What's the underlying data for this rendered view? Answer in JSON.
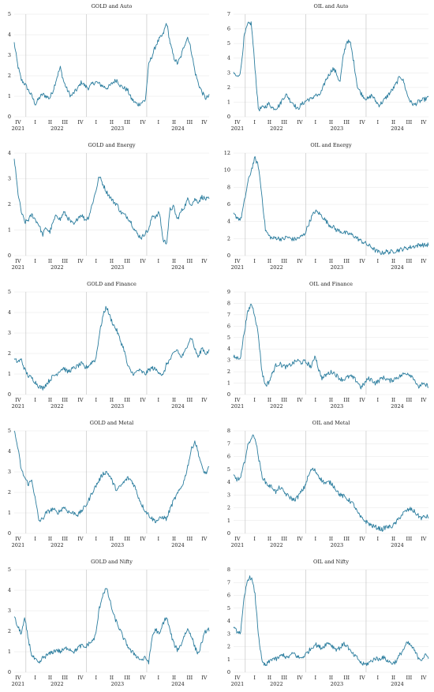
{
  "quarter_labels": [
    "IV",
    "I",
    "II",
    "III",
    "IV",
    "I",
    "II",
    "III",
    "IV",
    "I",
    "II",
    "III",
    "IV"
  ],
  "year_labels": [
    "2021",
    "2022",
    "2023",
    "2024"
  ],
  "colors": {
    "line": "#2b7d9e",
    "vgrid": "#bdbdbd",
    "hgrid": "#e6e6e6"
  },
  "chart_data": [
    {
      "type": "line",
      "title": "GOLD and Auto",
      "yticks": [
        "0",
        "1",
        "2",
        "3",
        "4",
        "5"
      ],
      "ylim": [
        0,
        5
      ],
      "knots": [
        3.6,
        2.5,
        1.8,
        1.6,
        1.3,
        1.0,
        0.6,
        0.9,
        1.1,
        1.0,
        0.9,
        1.3,
        1.9,
        2.4,
        1.7,
        1.3,
        1.0,
        1.2,
        1.4,
        1.7,
        1.5,
        1.4,
        1.6,
        1.7,
        1.6,
        1.5,
        1.4,
        1.5,
        1.7,
        1.8,
        1.5,
        1.4,
        1.3,
        0.9,
        0.7,
        0.6,
        0.7,
        0.8,
        2.6,
        3.0,
        3.5,
        3.8,
        4.0,
        4.6,
        3.6,
        2.9,
        2.6,
        2.9,
        3.5,
        3.9,
        3.2,
        2.2,
        1.6,
        1.2,
        0.9,
        1.0
      ]
    },
    {
      "type": "line",
      "title": "OIL and Auto",
      "yticks": [
        "0",
        "1",
        "2",
        "3",
        "4",
        "5",
        "6",
        "7"
      ],
      "ylim": [
        0,
        7
      ],
      "knots": [
        3.0,
        2.7,
        3.1,
        5.5,
        6.3,
        6.4,
        3.5,
        0.5,
        0.6,
        0.7,
        0.9,
        0.6,
        0.6,
        0.8,
        1.3,
        1.5,
        1.1,
        0.9,
        0.5,
        0.8,
        1.0,
        1.2,
        1.2,
        1.5,
        1.4,
        1.8,
        2.5,
        2.9,
        3.3,
        3.0,
        2.3,
        4.2,
        5.2,
        5.0,
        3.6,
        2.0,
        1.6,
        1.3,
        1.2,
        1.5,
        1.1,
        0.8,
        1.0,
        1.3,
        1.6,
        1.9,
        2.3,
        2.8,
        2.4,
        1.5,
        1.0,
        0.8,
        1.0,
        1.1,
        1.2,
        1.3
      ]
    },
    {
      "type": "line",
      "title": "GOLD and Energy",
      "yticks": [
        "0",
        "1",
        "2",
        "3",
        "4"
      ],
      "ylim": [
        0,
        4
      ],
      "knots": [
        3.8,
        2.5,
        1.7,
        1.3,
        1.4,
        1.6,
        1.4,
        1.2,
        0.8,
        1.1,
        0.9,
        1.3,
        1.6,
        1.4,
        1.7,
        1.5,
        1.3,
        1.2,
        1.5,
        1.6,
        1.4,
        1.5,
        2.0,
        2.5,
        3.1,
        2.8,
        2.5,
        2.3,
        2.1,
        2.0,
        1.7,
        1.6,
        1.5,
        1.3,
        1.0,
        0.8,
        0.7,
        0.9,
        1.0,
        1.6,
        1.5,
        1.7,
        0.6,
        0.5,
        1.8,
        1.9,
        1.4,
        1.7,
        1.9,
        2.2,
        2.0,
        2.2,
        2.1,
        2.3,
        2.2,
        2.2
      ]
    },
    {
      "type": "line",
      "title": "OIL and Energy",
      "yticks": [
        "0",
        "2",
        "4",
        "6",
        "8",
        "10",
        "12"
      ],
      "ylim": [
        0,
        12
      ],
      "knots": [
        4.8,
        4.5,
        4.2,
        6.2,
        8.5,
        10.0,
        11.4,
        10.5,
        7.0,
        3.0,
        2.3,
        2.0,
        2.1,
        2.0,
        1.9,
        2.2,
        2.0,
        1.9,
        2.0,
        2.2,
        2.5,
        3.5,
        4.5,
        5.2,
        5.0,
        4.6,
        4.1,
        3.6,
        3.4,
        3.0,
        2.9,
        2.7,
        2.6,
        2.5,
        2.3,
        2.0,
        1.7,
        1.5,
        1.2,
        1.0,
        0.6,
        0.4,
        0.3,
        0.5,
        0.4,
        0.5,
        0.6,
        0.7,
        0.8,
        0.9,
        1.0,
        1.1,
        1.2,
        1.3,
        1.2,
        1.3
      ]
    },
    {
      "type": "line",
      "title": "GOLD and Finance",
      "yticks": [
        "0",
        "1",
        "2",
        "3",
        "4",
        "5"
      ],
      "ylim": [
        0,
        5
      ],
      "knots": [
        1.7,
        1.6,
        1.7,
        1.2,
        0.9,
        0.8,
        0.6,
        0.4,
        0.3,
        0.5,
        0.7,
        0.9,
        1.0,
        1.2,
        1.3,
        1.1,
        1.2,
        1.3,
        1.4,
        1.5,
        1.3,
        1.4,
        1.6,
        1.7,
        2.9,
        3.8,
        4.3,
        3.8,
        3.4,
        3.1,
        2.6,
        2.2,
        1.4,
        1.1,
        1.0,
        1.2,
        1.1,
        1.0,
        1.2,
        1.3,
        1.2,
        1.1,
        0.9,
        1.5,
        1.7,
        2.0,
        2.2,
        1.8,
        2.0,
        2.5,
        2.8,
        2.2,
        1.8,
        2.3,
        2.0,
        2.1
      ]
    },
    {
      "type": "line",
      "title": "OIL and Finance",
      "yticks": [
        "0",
        "1",
        "2",
        "3",
        "4",
        "5",
        "6",
        "7",
        "8",
        "9"
      ],
      "ylim": [
        0,
        9
      ],
      "knots": [
        3.3,
        3.2,
        3.3,
        5.5,
        7.2,
        8.0,
        7.0,
        5.2,
        2.0,
        0.8,
        1.1,
        1.9,
        2.6,
        2.7,
        2.5,
        2.4,
        2.6,
        2.8,
        3.0,
        2.8,
        2.9,
        2.7,
        2.4,
        3.5,
        2.2,
        1.4,
        1.7,
        1.9,
        2.0,
        1.7,
        1.4,
        1.3,
        1.5,
        1.6,
        1.4,
        1.1,
        0.6,
        1.0,
        1.4,
        1.3,
        1.0,
        1.2,
        1.5,
        1.4,
        1.2,
        1.3,
        1.5,
        1.6,
        1.8,
        1.9,
        1.7,
        1.4,
        0.6,
        0.9,
        0.8,
        0.8
      ]
    },
    {
      "type": "line",
      "title": "GOLD and Metal",
      "yticks": [
        "0",
        "1",
        "2",
        "3",
        "4",
        "5"
      ],
      "ylim": [
        0,
        5
      ],
      "knots": [
        5.0,
        4.2,
        3.1,
        2.7,
        2.4,
        2.6,
        1.6,
        0.6,
        0.7,
        1.0,
        1.1,
        1.2,
        1.0,
        1.1,
        1.3,
        1.1,
        1.0,
        1.0,
        0.9,
        1.1,
        1.3,
        1.6,
        2.0,
        2.3,
        2.6,
        2.9,
        3.0,
        2.8,
        2.4,
        2.1,
        2.3,
        2.5,
        2.7,
        2.6,
        2.3,
        1.8,
        1.4,
        1.1,
        0.9,
        0.7,
        0.6,
        0.7,
        0.8,
        0.7,
        1.2,
        1.6,
        1.9,
        2.2,
        2.6,
        3.3,
        4.1,
        4.5,
        3.9,
        3.2,
        2.9,
        3.2
      ]
    },
    {
      "type": "line",
      "title": "OIL and Metal",
      "yticks": [
        "0",
        "1",
        "2",
        "3",
        "4",
        "5",
        "6",
        "7",
        "8"
      ],
      "ylim": [
        0,
        8
      ],
      "knots": [
        4.5,
        4.2,
        4.3,
        5.5,
        6.8,
        7.5,
        7.6,
        6.0,
        4.5,
        4.0,
        3.7,
        3.6,
        3.2,
        3.6,
        3.3,
        3.0,
        2.8,
        2.6,
        2.8,
        3.2,
        3.6,
        4.4,
        5.0,
        4.9,
        4.5,
        4.1,
        3.9,
        4.0,
        3.8,
        3.4,
        3.0,
        2.9,
        2.7,
        2.5,
        2.2,
        1.6,
        1.2,
        1.0,
        0.8,
        0.6,
        0.5,
        0.4,
        0.3,
        0.5,
        0.5,
        0.6,
        0.9,
        1.3,
        1.6,
        1.8,
        1.9,
        1.7,
        1.4,
        1.2,
        1.3,
        1.3
      ]
    },
    {
      "type": "line",
      "title": "GOLD and Nifty",
      "yticks": [
        "0",
        "1",
        "2",
        "3",
        "4",
        "5"
      ],
      "ylim": [
        0,
        5
      ],
      "knots": [
        2.7,
        2.2,
        1.9,
        2.6,
        1.6,
        0.8,
        0.6,
        0.4,
        0.7,
        0.8,
        0.9,
        1.0,
        1.1,
        1.0,
        1.1,
        1.2,
        1.1,
        1.0,
        1.2,
        1.3,
        1.2,
        1.4,
        1.5,
        1.8,
        3.1,
        3.8,
        4.1,
        3.5,
        2.8,
        2.4,
        2.0,
        1.6,
        1.3,
        1.0,
        0.9,
        0.7,
        0.6,
        0.7,
        0.5,
        1.8,
        2.1,
        1.8,
        2.4,
        2.7,
        2.0,
        1.4,
        1.1,
        1.3,
        1.8,
        2.1,
        1.8,
        1.2,
        0.9,
        1.5,
        2.0,
        2.1
      ]
    },
    {
      "type": "line",
      "title": "OIL and Nifty",
      "yticks": [
        "0",
        "1",
        "2",
        "3",
        "4",
        "5",
        "6",
        "7",
        "8"
      ],
      "ylim": [
        0,
        8
      ],
      "knots": [
        3.4,
        3.2,
        3.1,
        5.8,
        7.3,
        7.4,
        6.2,
        3.0,
        0.8,
        0.5,
        0.8,
        1.1,
        1.0,
        1.2,
        1.4,
        1.1,
        1.3,
        1.5,
        1.2,
        1.1,
        1.3,
        1.6,
        1.9,
        2.2,
        2.0,
        1.9,
        2.2,
        2.3,
        2.0,
        1.8,
        1.9,
        2.2,
        2.1,
        1.6,
        1.3,
        1.1,
        0.7,
        0.6,
        0.7,
        0.9,
        1.1,
        1.0,
        1.2,
        1.0,
        0.8,
        0.7,
        0.9,
        1.4,
        1.8,
        2.3,
        2.1,
        1.7,
        1.2,
        1.0,
        1.3,
        1.2
      ]
    }
  ]
}
